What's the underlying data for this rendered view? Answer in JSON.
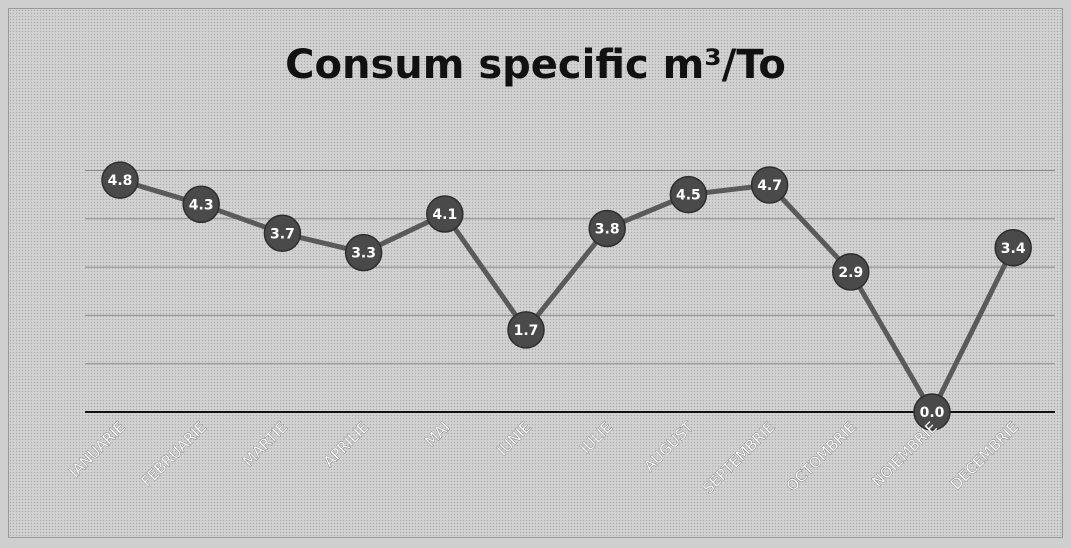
{
  "chart_data": {
    "type": "line",
    "title": "Consum specific m³/To",
    "xlabel": "",
    "ylabel": "",
    "categories": [
      "IANUARIE",
      "FEBRUARIE",
      "MARTIE",
      "APRILIE",
      "MAI",
      "IUNIE",
      "IULIE",
      "AUGUST",
      "SEPTEMBRIE",
      "OCTOMBRIE",
      "NOIEMBRIE",
      "DECEMBRIE"
    ],
    "series": [
      {
        "values": [
          4.8,
          4.3,
          3.7,
          3.3,
          4.1,
          1.7,
          3.8,
          4.5,
          4.7,
          2.9,
          0.0,
          3.4
        ]
      }
    ],
    "data_labels": [
      "4.8",
      "4.3",
      "3.7",
      "3.3",
      "4.1",
      "1.7",
      "3.8",
      "4.5",
      "4.7",
      "2.9",
      "0.0",
      "3.4"
    ],
    "ylim": [
      0,
      6
    ],
    "gridlines": [
      1,
      2,
      3,
      4,
      5
    ],
    "grid": true,
    "legend": "none",
    "colors": {
      "line": "#5a5a5a",
      "marker": "#4a4a4a",
      "marker_text": "#ffffff",
      "axis": "#111111",
      "grid": "#8c8c8c"
    }
  }
}
